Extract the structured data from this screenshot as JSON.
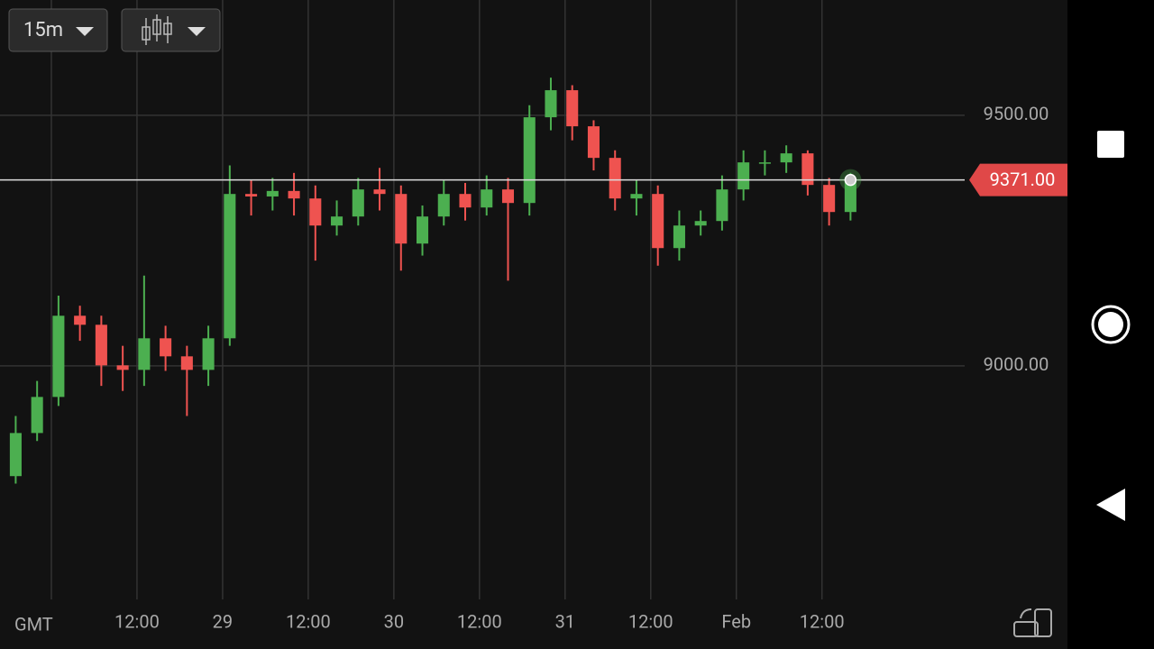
{
  "toolbar": {
    "interval": "15m"
  },
  "chart_data": {
    "type": "candlestick",
    "timezone_label": "GMT",
    "x": [
      -5,
      -2,
      1,
      4,
      7,
      10,
      13,
      16,
      19,
      22,
      25,
      28,
      31,
      34,
      37,
      40,
      43,
      46,
      49,
      52,
      55,
      58,
      61,
      64,
      67,
      70,
      73,
      76,
      79,
      82,
      85,
      88,
      91,
      94,
      97,
      100,
      103,
      106,
      109,
      112
    ],
    "open": [
      8780,
      8866,
      8938,
      9100,
      9082,
      9001,
      8992,
      9055,
      9019,
      8992,
      9055,
      9343,
      9338,
      9349,
      9334,
      9280,
      9298,
      9352,
      9343,
      9244,
      9298,
      9343,
      9316,
      9352,
      9325,
      9496,
      9550,
      9478,
      9415,
      9334,
      9343,
      9235,
      9280,
      9289,
      9352,
      9406,
      9406,
      9424,
      9361,
      9307
    ],
    "high": [
      8900,
      8970,
      9140,
      9120,
      9100,
      9040,
      9180,
      9080,
      9040,
      9080,
      9400,
      9370,
      9375,
      9385,
      9360,
      9330,
      9375,
      9395,
      9360,
      9320,
      9370,
      9365,
      9380,
      9375,
      9520,
      9575,
      9560,
      9490,
      9430,
      9370,
      9360,
      9310,
      9310,
      9380,
      9430,
      9430,
      9440,
      9430,
      9375,
      9385
    ],
    "low": [
      8765,
      8850,
      8920,
      9050,
      8960,
      8950,
      8960,
      8990,
      8900,
      8960,
      9040,
      9300,
      9310,
      9300,
      9210,
      9260,
      9280,
      9310,
      9190,
      9220,
      9280,
      9290,
      9300,
      9170,
      9300,
      9470,
      9450,
      9390,
      9310,
      9300,
      9200,
      9210,
      9260,
      9270,
      9330,
      9380,
      9385,
      9340,
      9280,
      9290
    ],
    "close": [
      8866,
      8938,
      9100,
      9082,
      9001,
      8992,
      9055,
      9019,
      8992,
      9055,
      9343,
      9338,
      9349,
      9334,
      9280,
      9298,
      9352,
      9343,
      9244,
      9298,
      9343,
      9316,
      9352,
      9325,
      9496,
      9550,
      9478,
      9415,
      9334,
      9343,
      9235,
      9280,
      9289,
      9352,
      9406,
      9406,
      9424,
      9361,
      9307,
      9371
    ],
    "up_color": "#4caf50",
    "down_color": "#ef5350",
    "xlim": [
      -7.2,
      128
    ],
    "xticks": [
      0,
      {
        "value": 12,
        "label": "12:00"
      },
      {
        "value": 24,
        "label": "29"
      },
      {
        "value": 36,
        "label": "12:00"
      },
      {
        "value": 48,
        "label": "30"
      },
      {
        "value": 60,
        "label": "12:00"
      },
      {
        "value": 72,
        "label": "31"
      },
      {
        "value": 84,
        "label": "12:00"
      },
      {
        "value": 96,
        "label": "Feb"
      },
      {
        "value": 108,
        "label": "12:00"
      }
    ],
    "ylim": [
      8534,
      9730
    ],
    "yticks": [
      {
        "value": 9000,
        "label": "9000.00"
      },
      {
        "value": 9500,
        "label": "9500.00"
      }
    ],
    "current_price": 9371,
    "current_price_label": "9371.00",
    "current_price_color": "#e04848",
    "grid": true
  }
}
